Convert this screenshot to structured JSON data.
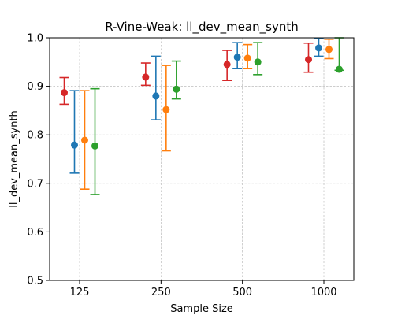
{
  "chart_data": {
    "type": "errorbar",
    "title": "R-Vine-Weak: ll_dev_mean_synth",
    "xlabel": "Sample Size",
    "ylabel": "ll_dev_mean_synth",
    "categories": [
      "125",
      "250",
      "500",
      "1000"
    ],
    "ylim": [
      0.5,
      1.0
    ],
    "yticks": [
      0.5,
      0.6,
      0.7,
      0.8,
      0.9,
      1.0
    ],
    "yticklabels": [
      "0.5",
      "0.6",
      "0.7",
      "0.8",
      "0.9",
      "1.0"
    ],
    "grid": true,
    "legend": "none",
    "series": [
      {
        "color": "#d62728",
        "points": [
          {
            "mean": 0.887,
            "low": 0.863,
            "high": 0.918
          },
          {
            "mean": 0.919,
            "low": 0.902,
            "high": 0.948
          },
          {
            "mean": 0.945,
            "low": 0.912,
            "high": 0.974
          },
          {
            "mean": 0.955,
            "low": 0.929,
            "high": 0.989
          }
        ]
      },
      {
        "color": "#1f77b4",
        "points": [
          {
            "mean": 0.779,
            "low": 0.721,
            "high": 0.891
          },
          {
            "mean": 0.88,
            "low": 0.831,
            "high": 0.962
          },
          {
            "mean": 0.96,
            "low": 0.937,
            "high": 0.99
          },
          {
            "mean": 0.979,
            "low": 0.962,
            "high": 0.999
          }
        ]
      },
      {
        "color": "#ff7f0e",
        "points": [
          {
            "mean": 0.789,
            "low": 0.688,
            "high": 0.891
          },
          {
            "mean": 0.852,
            "low": 0.767,
            "high": 0.943
          },
          {
            "mean": 0.958,
            "low": 0.937,
            "high": 0.986
          },
          {
            "mean": 0.976,
            "low": 0.957,
            "high": 0.997
          }
        ]
      },
      {
        "color": "#2ca02c",
        "points": [
          {
            "mean": 0.777,
            "low": 0.677,
            "high": 0.895
          },
          {
            "mean": 0.894,
            "low": 0.874,
            "high": 0.952
          },
          {
            "mean": 0.95,
            "low": 0.924,
            "high": 0.99
          },
          {
            "mean": 0.935,
            "low": 0.933,
            "high": 1.0
          }
        ]
      }
    ]
  }
}
